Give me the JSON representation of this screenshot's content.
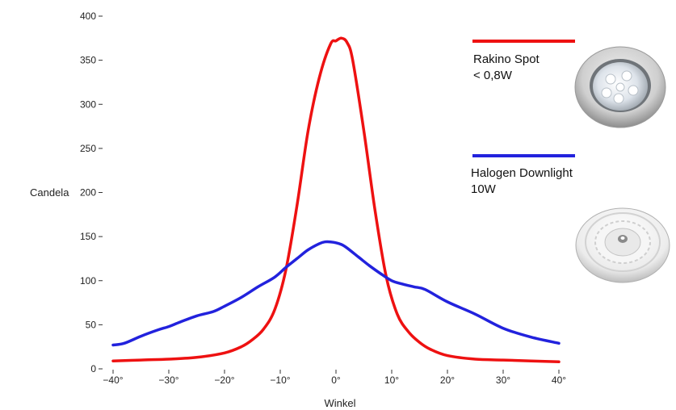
{
  "chart_data": {
    "type": "line",
    "xlabel": "Winkel",
    "ylabel": "Candela",
    "xlim": [
      -40,
      40
    ],
    "ylim": [
      0,
      400
    ],
    "xticks": [
      -40,
      -30,
      -20,
      -10,
      0,
      10,
      20,
      30,
      40
    ],
    "xtick_labels": [
      "−40°",
      "−30°",
      "−20°",
      "−10°",
      "0°",
      "10°",
      "20°",
      "30°",
      "40°"
    ],
    "yticks": [
      0,
      50,
      100,
      150,
      200,
      250,
      300,
      350,
      400
    ],
    "ytick_labels": [
      "0",
      "50",
      "100",
      "150",
      "200",
      "250",
      "300",
      "350",
      "400"
    ],
    "grid": false,
    "legend_position": "right",
    "series": [
      {
        "name": "Rakino Spot < 0,8W",
        "color": "#ee1111",
        "x": [
          -40,
          -35,
          -30,
          -25,
          -20,
          -17,
          -15,
          -13,
          -11,
          -9,
          -7,
          -5,
          -3,
          -1,
          0,
          1,
          2,
          3,
          5,
          7,
          9,
          11,
          13,
          15,
          17,
          20,
          25,
          30,
          35,
          40
        ],
        "y": [
          9,
          10,
          11,
          13,
          18,
          25,
          33,
          45,
          67,
          112,
          185,
          270,
          330,
          368,
          372,
          375,
          370,
          350,
          270,
          180,
          105,
          62,
          42,
          30,
          22,
          15,
          11,
          10,
          9,
          8
        ]
      },
      {
        "name": "Halogen Downlight 10W",
        "color": "#2222dd",
        "x": [
          -40,
          -38,
          -35,
          -32,
          -30,
          -28,
          -25,
          -22,
          -20,
          -17,
          -14,
          -11,
          -9,
          -7,
          -5,
          -3,
          -2,
          -1,
          0,
          1,
          2,
          4,
          6,
          8,
          10,
          12,
          14,
          16,
          20,
          25,
          30,
          35,
          40
        ],
        "y": [
          27,
          29,
          37,
          44,
          48,
          53,
          60,
          65,
          71,
          81,
          93,
          104,
          115,
          125,
          135,
          142,
          144,
          144,
          143,
          141,
          137,
          127,
          117,
          108,
          100,
          96,
          93,
          90,
          76,
          62,
          46,
          36,
          29
        ]
      }
    ]
  },
  "legend": {
    "items": [
      {
        "line1": "Rakino Spot",
        "line2": "< 0,8W",
        "color": "#ee1111",
        "image": "rakino-spot-product"
      },
      {
        "line1": "Halogen Downlight",
        "line2": "10W",
        "color": "#2222dd",
        "image": "halogen-downlight-product"
      }
    ]
  }
}
